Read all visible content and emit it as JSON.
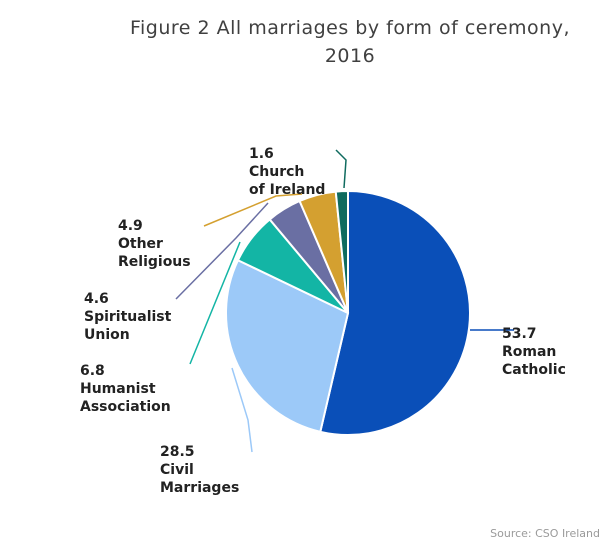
{
  "chart_data": {
    "type": "pie",
    "title_lines": [
      "Figure 2 All marriages by form of ceremony,",
      "2016"
    ],
    "slices": [
      {
        "label_lines": [
          "53.7",
          "Roman",
          "Catholic"
        ],
        "label": "Roman Catholic",
        "value": 53.7,
        "color": "#0a4fb8"
      },
      {
        "label_lines": [
          "28.5",
          "Civil",
          "Marriages"
        ],
        "label": "Civil Marriages",
        "value": 28.5,
        "color": "#9cc9f8"
      },
      {
        "label_lines": [
          "6.8",
          "Humanist",
          "Association"
        ],
        "label": "Humanist Association",
        "value": 6.8,
        "color": "#13b5a5"
      },
      {
        "label_lines": [
          "4.6",
          "Spiritualist",
          "Union"
        ],
        "label": "Spiritualist Union",
        "value": 4.6,
        "color": "#6a6fa3"
      },
      {
        "label_lines": [
          "4.9",
          "Other",
          "Religious"
        ],
        "label": "Other Religious",
        "value": 4.9,
        "color": "#d4a030"
      },
      {
        "label_lines": [
          "1.6",
          "Church",
          "of Ireland"
        ],
        "label": "Church of Ireland",
        "value": 1.6,
        "color": "#0f6b5f"
      }
    ]
  },
  "source": "Source: CSO Ireland"
}
